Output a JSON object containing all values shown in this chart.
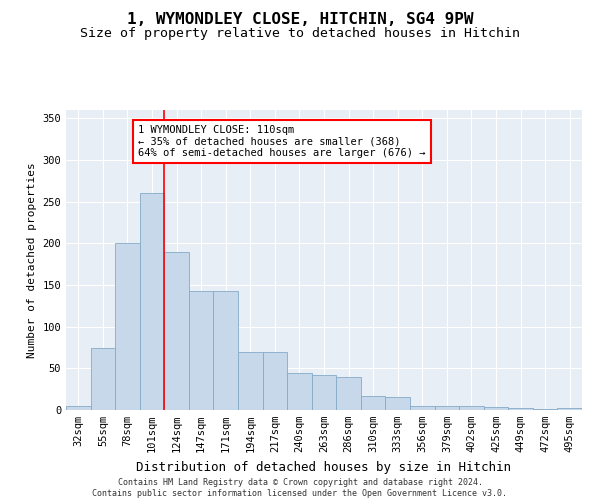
{
  "title": "1, WYMONDLEY CLOSE, HITCHIN, SG4 9PW",
  "subtitle": "Size of property relative to detached houses in Hitchin",
  "xlabel": "Distribution of detached houses by size in Hitchin",
  "ylabel": "Number of detached properties",
  "categories": [
    "32sqm",
    "55sqm",
    "78sqm",
    "101sqm",
    "124sqm",
    "147sqm",
    "171sqm",
    "194sqm",
    "217sqm",
    "240sqm",
    "263sqm",
    "286sqm",
    "310sqm",
    "333sqm",
    "356sqm",
    "379sqm",
    "402sqm",
    "425sqm",
    "449sqm",
    "472sqm",
    "495sqm"
  ],
  "values": [
    5,
    75,
    200,
    260,
    190,
    143,
    143,
    70,
    70,
    44,
    42,
    40,
    17,
    16,
    5,
    5,
    5,
    4,
    3,
    1,
    2
  ],
  "bar_color": "#c8d8eb",
  "bar_edge_color": "#85aac8",
  "red_line_x": 3.5,
  "annotation_line1": "1 WYMONDLEY CLOSE: 110sqm",
  "annotation_line2": "← 35% of detached houses are smaller (368)",
  "annotation_line3": "64% of semi-detached houses are larger (676) →",
  "ylim": [
    0,
    360
  ],
  "yticks": [
    0,
    50,
    100,
    150,
    200,
    250,
    300,
    350
  ],
  "footer_line1": "Contains HM Land Registry data © Crown copyright and database right 2024.",
  "footer_line2": "Contains public sector information licensed under the Open Government Licence v3.0.",
  "bg_color": "#e8eef5",
  "title_fontsize": 11.5,
  "subtitle_fontsize": 9.5,
  "tick_fontsize": 7.5,
  "xlabel_fontsize": 9,
  "ylabel_fontsize": 8
}
